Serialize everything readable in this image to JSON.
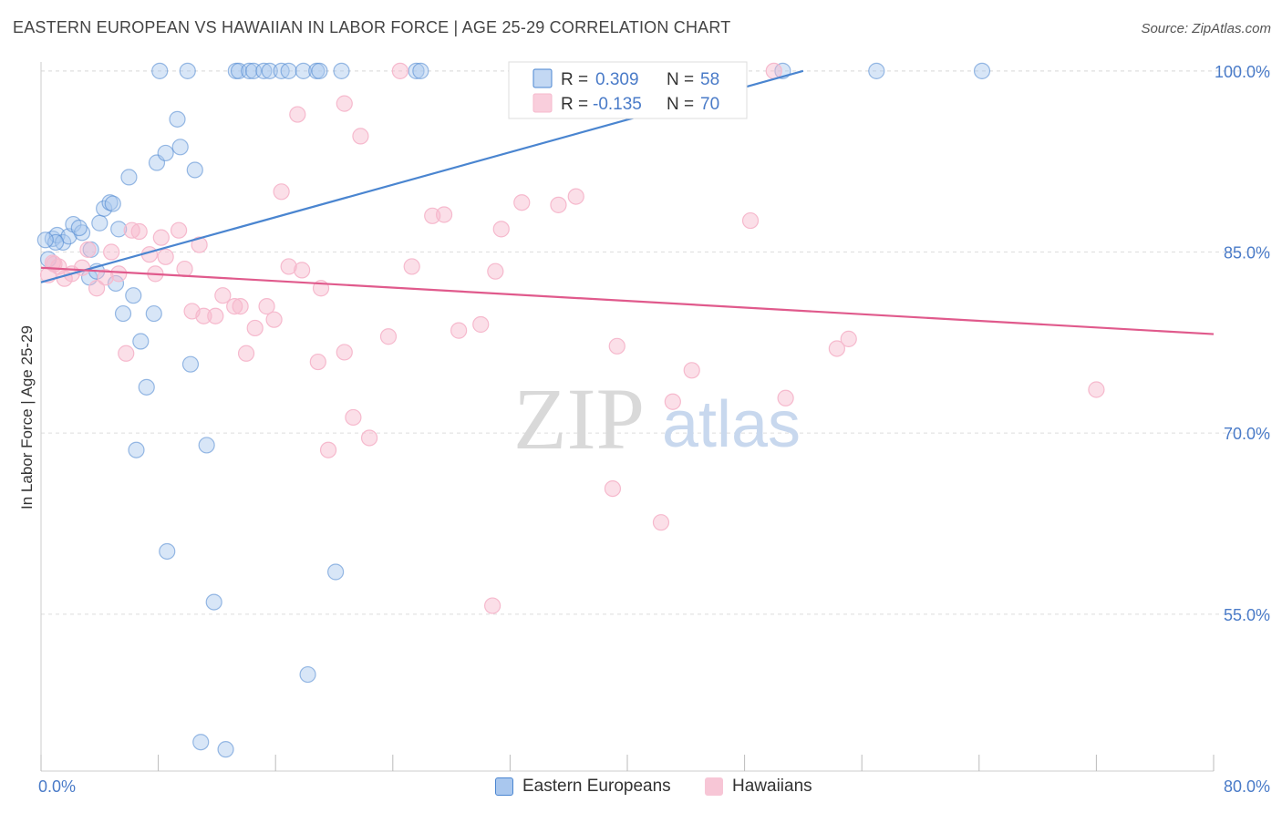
{
  "header": {
    "title": "EASTERN EUROPEAN VS HAWAIIAN IN LABOR FORCE | AGE 25-29 CORRELATION CHART",
    "source": "Source: ZipAtlas.com"
  },
  "watermark": {
    "zip": "ZIP",
    "atlas": "atlas"
  },
  "colors": {
    "blue": "#4a85d0",
    "blue_fill": "#a9c7ee",
    "pink": "#e05a8c",
    "pink_fill": "#f6b9cd",
    "axis_text": "#4a7bc8",
    "grid": "#dddddd"
  },
  "legend": [
    {
      "r_label": "R =",
      "r_value": "0.309",
      "n_label": "N =",
      "n_value": "58"
    },
    {
      "r_label": "R =",
      "r_value": "-0.135",
      "n_label": "N =",
      "n_value": "70"
    }
  ],
  "bottom_legend": {
    "blue_label": "Eastern Europeans",
    "pink_label": "Hawaiians"
  },
  "chart_data": {
    "type": "scatter",
    "title": "EASTERN EUROPEAN VS HAWAIIAN IN LABOR FORCE | AGE 25-29 CORRELATION CHART",
    "xlabel": "",
    "ylabel": "In Labor Force | Age 25-29",
    "xlim": [
      0,
      80
    ],
    "ylim": [
      42,
      101.5
    ],
    "x_tick_labels": [
      "0.0%",
      "80.0%"
    ],
    "y_ticks": [
      55,
      70,
      85,
      100
    ],
    "y_tick_labels": [
      "55.0%",
      "70.0%",
      "85.0%",
      "100.0%"
    ],
    "grid": true,
    "series": [
      {
        "name": "Eastern Europeans",
        "color": "#4a85d0",
        "trend": {
          "x0": 0,
          "y0": 82.5,
          "x1": 52,
          "y1": 100
        },
        "points": [
          [
            0.5,
            84.4
          ],
          [
            0.8,
            86.1
          ],
          [
            1.1,
            86.4
          ],
          [
            1.5,
            85.8
          ],
          [
            1.9,
            86.3
          ],
          [
            2.2,
            87.3
          ],
          [
            2.8,
            86.6
          ],
          [
            3.3,
            82.9
          ],
          [
            3.4,
            85.2
          ],
          [
            3.8,
            83.4
          ],
          [
            4.0,
            87.4
          ],
          [
            4.3,
            88.6
          ],
          [
            4.7,
            89.1
          ],
          [
            5.1,
            82.4
          ],
          [
            5.3,
            86.9
          ],
          [
            5.6,
            79.9
          ],
          [
            6.0,
            91.2
          ],
          [
            6.3,
            81.4
          ],
          [
            6.5,
            68.6
          ],
          [
            6.8,
            77.6
          ],
          [
            7.2,
            73.8
          ],
          [
            7.7,
            79.9
          ],
          [
            7.9,
            92.4
          ],
          [
            8.5,
            93.2
          ],
          [
            8.6,
            60.2
          ],
          [
            9.3,
            96.0
          ],
          [
            9.5,
            93.7
          ],
          [
            10.2,
            75.7
          ],
          [
            10.5,
            91.8
          ],
          [
            10.9,
            44.4
          ],
          [
            11.3,
            69.0
          ],
          [
            11.8,
            56.0
          ],
          [
            12.6,
            43.8
          ],
          [
            13.3,
            100.0
          ],
          [
            13.5,
            100.0
          ],
          [
            14.2,
            100.0
          ],
          [
            14.5,
            100.0
          ],
          [
            15.2,
            100.0
          ],
          [
            15.6,
            100.0
          ],
          [
            16.4,
            100.0
          ],
          [
            16.9,
            100.0
          ],
          [
            17.9,
            100.0
          ],
          [
            18.2,
            50.0
          ],
          [
            18.8,
            100.0
          ],
          [
            19.0,
            100.0
          ],
          [
            20.1,
            58.5
          ],
          [
            20.5,
            100.0
          ],
          [
            10.0,
            100.0
          ],
          [
            8.1,
            100.0
          ],
          [
            25.6,
            100.0
          ],
          [
            25.9,
            100.0
          ],
          [
            50.6,
            100.0
          ],
          [
            57.0,
            100.0
          ],
          [
            64.2,
            100.0
          ],
          [
            2.6,
            87.0
          ],
          [
            1.0,
            85.8
          ],
          [
            0.3,
            86.0
          ],
          [
            4.9,
            89.0
          ]
        ]
      },
      {
        "name": "Hawaiians",
        "color": "#e05a8c",
        "trend": {
          "x0": 0,
          "y0": 83.7,
          "x1": 80,
          "y1": 78.2
        },
        "points": [
          [
            0.5,
            83.1
          ],
          [
            0.8,
            84.1
          ],
          [
            1.2,
            83.8
          ],
          [
            1.6,
            82.8
          ],
          [
            2.1,
            83.2
          ],
          [
            2.8,
            83.7
          ],
          [
            3.2,
            85.2
          ],
          [
            3.8,
            82.0
          ],
          [
            4.4,
            82.9
          ],
          [
            4.8,
            85.0
          ],
          [
            5.3,
            83.2
          ],
          [
            5.8,
            76.6
          ],
          [
            6.2,
            86.8
          ],
          [
            6.7,
            86.7
          ],
          [
            7.4,
            84.8
          ],
          [
            7.8,
            83.2
          ],
          [
            8.2,
            86.2
          ],
          [
            8.5,
            84.6
          ],
          [
            9.4,
            86.8
          ],
          [
            9.8,
            83.6
          ],
          [
            10.3,
            80.1
          ],
          [
            10.8,
            85.6
          ],
          [
            11.1,
            79.7
          ],
          [
            11.9,
            79.7
          ],
          [
            12.4,
            81.4
          ],
          [
            13.2,
            80.5
          ],
          [
            13.6,
            80.5
          ],
          [
            14.0,
            76.6
          ],
          [
            14.6,
            78.7
          ],
          [
            15.4,
            80.5
          ],
          [
            15.9,
            79.4
          ],
          [
            16.4,
            90.0
          ],
          [
            16.9,
            83.8
          ],
          [
            17.5,
            96.4
          ],
          [
            17.8,
            83.5
          ],
          [
            18.9,
            75.9
          ],
          [
            19.1,
            82.0
          ],
          [
            19.6,
            68.6
          ],
          [
            20.7,
            97.3
          ],
          [
            20.7,
            76.7
          ],
          [
            21.3,
            71.3
          ],
          [
            21.8,
            94.6
          ],
          [
            22.4,
            69.6
          ],
          [
            23.7,
            78.0
          ],
          [
            24.5,
            100.0
          ],
          [
            25.3,
            83.8
          ],
          [
            26.7,
            88.0
          ],
          [
            27.5,
            88.1
          ],
          [
            28.5,
            78.5
          ],
          [
            30.0,
            79.0
          ],
          [
            30.8,
            55.7
          ],
          [
            31.0,
            83.4
          ],
          [
            31.4,
            86.9
          ],
          [
            32.8,
            89.1
          ],
          [
            33.0,
            100.0
          ],
          [
            35.3,
            88.9
          ],
          [
            36.5,
            89.6
          ],
          [
            39.0,
            65.4
          ],
          [
            39.3,
            77.2
          ],
          [
            42.3,
            62.6
          ],
          [
            42.8,
            100.0
          ],
          [
            43.1,
            72.6
          ],
          [
            44.4,
            75.2
          ],
          [
            48.4,
            87.6
          ],
          [
            50.0,
            100.0
          ],
          [
            50.8,
            72.9
          ],
          [
            54.3,
            77.0
          ],
          [
            55.1,
            77.8
          ],
          [
            72.0,
            73.6
          ],
          [
            0.9,
            84.0
          ]
        ]
      }
    ]
  }
}
